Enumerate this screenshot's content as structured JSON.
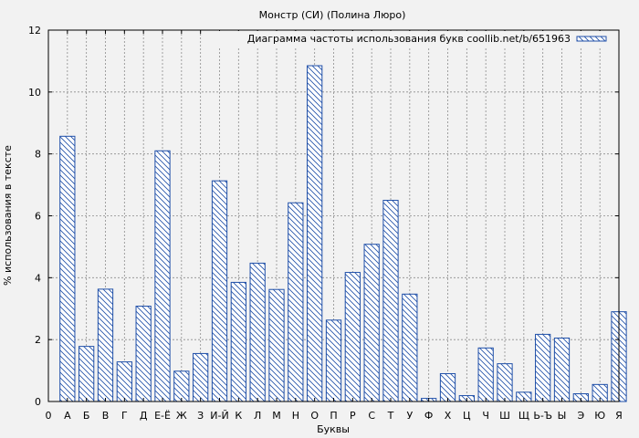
{
  "chart_data": {
    "type": "bar",
    "title": "Монстр (СИ) (Полина Люро)",
    "xlabel": "Буквы",
    "ylabel": "% использования в тексте",
    "ylim": [
      0,
      12
    ],
    "yticks": [
      0,
      2,
      4,
      6,
      8,
      10,
      12
    ],
    "x_first_tick": "0",
    "grid": true,
    "legend_position": "top-right",
    "colors": {
      "bar": "#1f4fa8",
      "background": "#f2f2f2",
      "grid": "#8c8c8c"
    },
    "categories": [
      "А",
      "Б",
      "В",
      "Г",
      "Д",
      "Е-Ё",
      "Ж",
      "З",
      "И-Й",
      "К",
      "Л",
      "М",
      "Н",
      "О",
      "П",
      "Р",
      "С",
      "Т",
      "У",
      "Ф",
      "Х",
      "Ц",
      "Ч",
      "Ш",
      "Щ",
      "Ь-Ъ",
      "Ы",
      "Э",
      "Ю",
      "Я"
    ],
    "series": [
      {
        "name": "Диаграмма частоты использования букв coollib.net/b/651963",
        "values": [
          8.57,
          1.78,
          3.63,
          1.28,
          3.08,
          8.1,
          0.98,
          1.55,
          7.13,
          3.85,
          4.47,
          3.62,
          6.42,
          10.85,
          2.63,
          4.17,
          5.08,
          6.5,
          3.47,
          0.1,
          0.9,
          0.19,
          1.73,
          1.22,
          0.3,
          2.17,
          2.05,
          0.25,
          0.55,
          2.9
        ]
      }
    ]
  }
}
